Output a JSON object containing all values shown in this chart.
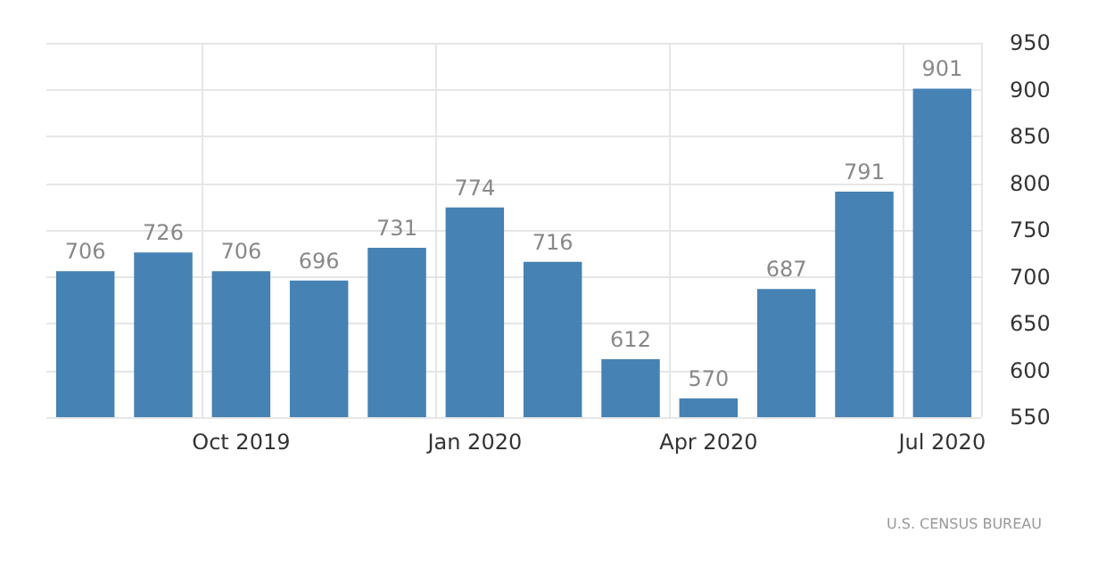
{
  "chart_data": {
    "type": "bar",
    "categories": [
      null,
      null,
      "Oct 2019",
      null,
      null,
      "Jan 2020",
      null,
      null,
      "Apr 2020",
      null,
      null,
      "Jul 2020"
    ],
    "values": [
      706,
      726,
      706,
      696,
      731,
      774,
      716,
      612,
      570,
      687,
      791,
      901
    ],
    "color": "#4682b4",
    "ylim": [
      550,
      950
    ],
    "yticks": [
      550,
      600,
      650,
      700,
      750,
      800,
      850,
      900,
      950
    ],
    "grid": true,
    "data_labels": true,
    "annotations": [
      "U.S. CENSUS BUREAU"
    ]
  }
}
